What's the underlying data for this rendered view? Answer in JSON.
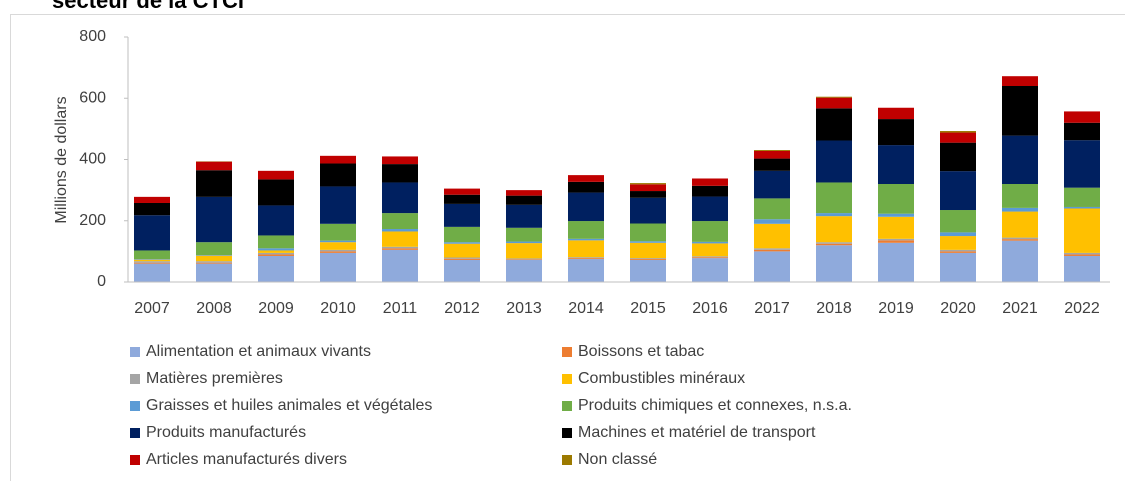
{
  "chart_data": {
    "type": "bar",
    "stacked": true,
    "title": "secteur de la CTCI",
    "y_label": "Millions de dollars",
    "categories": [
      "2007",
      "2008",
      "2009",
      "2010",
      "2011",
      "2012",
      "2013",
      "2014",
      "2015",
      "2016",
      "2017",
      "2018",
      "2019",
      "2020",
      "2021",
      "2022"
    ],
    "ylim": [
      0,
      800
    ],
    "yticks": [
      0,
      200,
      400,
      600,
      800
    ],
    "grid": false,
    "legend": "bottom",
    "series": [
      {
        "name": "Alimentation et animaux vivants",
        "color": "#8faadc",
        "values": [
          60,
          60,
          85,
          95,
          105,
          72,
          72,
          75,
          72,
          78,
          100,
          120,
          128,
          95,
          135,
          85
        ]
      },
      {
        "name": "Boissons et tabac",
        "color": "#ed7d31",
        "values": [
          3,
          3,
          5,
          5,
          5,
          4,
          2,
          3,
          3,
          3,
          5,
          5,
          8,
          5,
          5,
          5
        ]
      },
      {
        "name": "Matières premières",
        "color": "#a5a5a5",
        "values": [
          5,
          5,
          5,
          5,
          5,
          4,
          3,
          3,
          3,
          3,
          5,
          5,
          5,
          5,
          5,
          5
        ]
      },
      {
        "name": "Combustibles minéraux",
        "color": "#ffc000",
        "values": [
          5,
          18,
          8,
          25,
          50,
          45,
          50,
          55,
          50,
          42,
          80,
          85,
          72,
          45,
          85,
          145
        ]
      },
      {
        "name": "Graisses et huiles animales et végétales",
        "color": "#5b9bd5",
        "values": [
          2,
          2,
          7,
          5,
          8,
          5,
          5,
          5,
          5,
          5,
          15,
          10,
          10,
          12,
          12,
          5
        ]
      },
      {
        "name": "Produits chimiques et connexes, n.s.a.",
        "color": "#70ad47",
        "values": [
          28,
          42,
          42,
          55,
          52,
          50,
          45,
          58,
          58,
          68,
          68,
          100,
          97,
          73,
          78,
          63
        ]
      },
      {
        "name": "Produits manufacturés",
        "color": "#002060",
        "values": [
          115,
          148,
          98,
          122,
          100,
          75,
          75,
          93,
          84,
          80,
          90,
          137,
          127,
          127,
          158,
          155
        ]
      },
      {
        "name": "Machines et matériel de transport",
        "color": "#000000",
        "values": [
          40,
          87,
          85,
          75,
          60,
          30,
          30,
          35,
          22,
          35,
          40,
          105,
          85,
          93,
          162,
          57
        ]
      },
      {
        "name": "Articles manufacturés divers",
        "color": "#c00000",
        "values": [
          20,
          28,
          28,
          25,
          25,
          20,
          18,
          22,
          22,
          24,
          25,
          35,
          37,
          33,
          32,
          37
        ]
      },
      {
        "name": "Non classé",
        "color": "#9c7a00",
        "values": [
          0,
          1,
          0,
          0,
          0,
          0,
          0,
          0,
          4,
          0,
          3,
          3,
          0,
          5,
          0,
          0
        ]
      }
    ]
  }
}
